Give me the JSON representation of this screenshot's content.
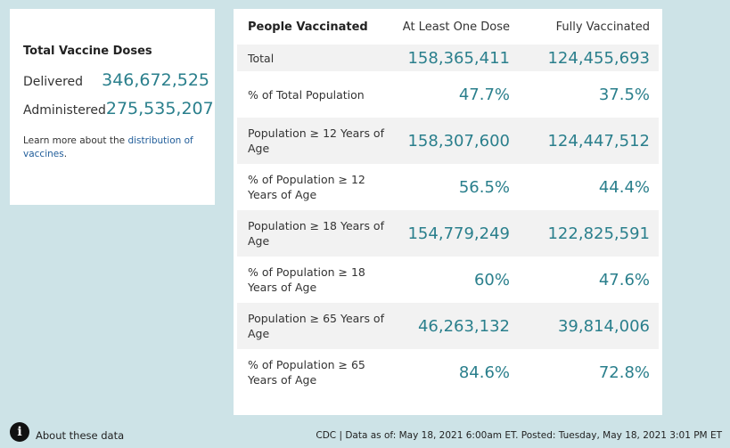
{
  "doses": {
    "title": "Total Vaccine Doses",
    "delivered_label": "Delivered",
    "delivered_value": "346,672,525",
    "administered_label": "Administered",
    "administered_value": "275,535,207",
    "learn_more_prefix": "Learn more about the ",
    "learn_more_link": "distribution of vaccines",
    "learn_more_suffix": "."
  },
  "table": {
    "headers": [
      "People Vaccinated",
      "At Least One Dose",
      "Fully Vaccinated"
    ],
    "rows": [
      {
        "label": "Total",
        "one_dose": "158,365,411",
        "fully": "124,455,693"
      },
      {
        "label": "% of Total Population",
        "one_dose": "47.7%",
        "fully": "37.5%"
      },
      {
        "label": "Population ≥ 12 Years of Age",
        "one_dose": "158,307,600",
        "fully": "124,447,512"
      },
      {
        "label": "% of Population ≥ 12 Years of Age",
        "one_dose": "56.5%",
        "fully": "44.4%"
      },
      {
        "label": "Population ≥ 18 Years of Age",
        "one_dose": "154,779,249",
        "fully": "122,825,591"
      },
      {
        "label": "% of Population ≥ 18 Years of Age",
        "one_dose": "60%",
        "fully": "47.6%"
      },
      {
        "label": "Population ≥ 65 Years of Age",
        "one_dose": "46,263,132",
        "fully": "39,814,006"
      },
      {
        "label": "% of Population ≥ 65 Years of Age",
        "one_dose": "84.6%",
        "fully": "72.8%"
      }
    ]
  },
  "footer": {
    "about_label": "About these data",
    "source": "CDC | Data as of: May 18, 2021 6:00am ET. Posted: Tuesday, May 18, 2021 3:01 PM ET"
  },
  "icons": {
    "info": "info-icon"
  },
  "colors": {
    "background": "#cde3e7",
    "value_teal": "#2a7f8c",
    "link_blue": "#1f5c99",
    "row_shade": "#f2f2f2"
  }
}
